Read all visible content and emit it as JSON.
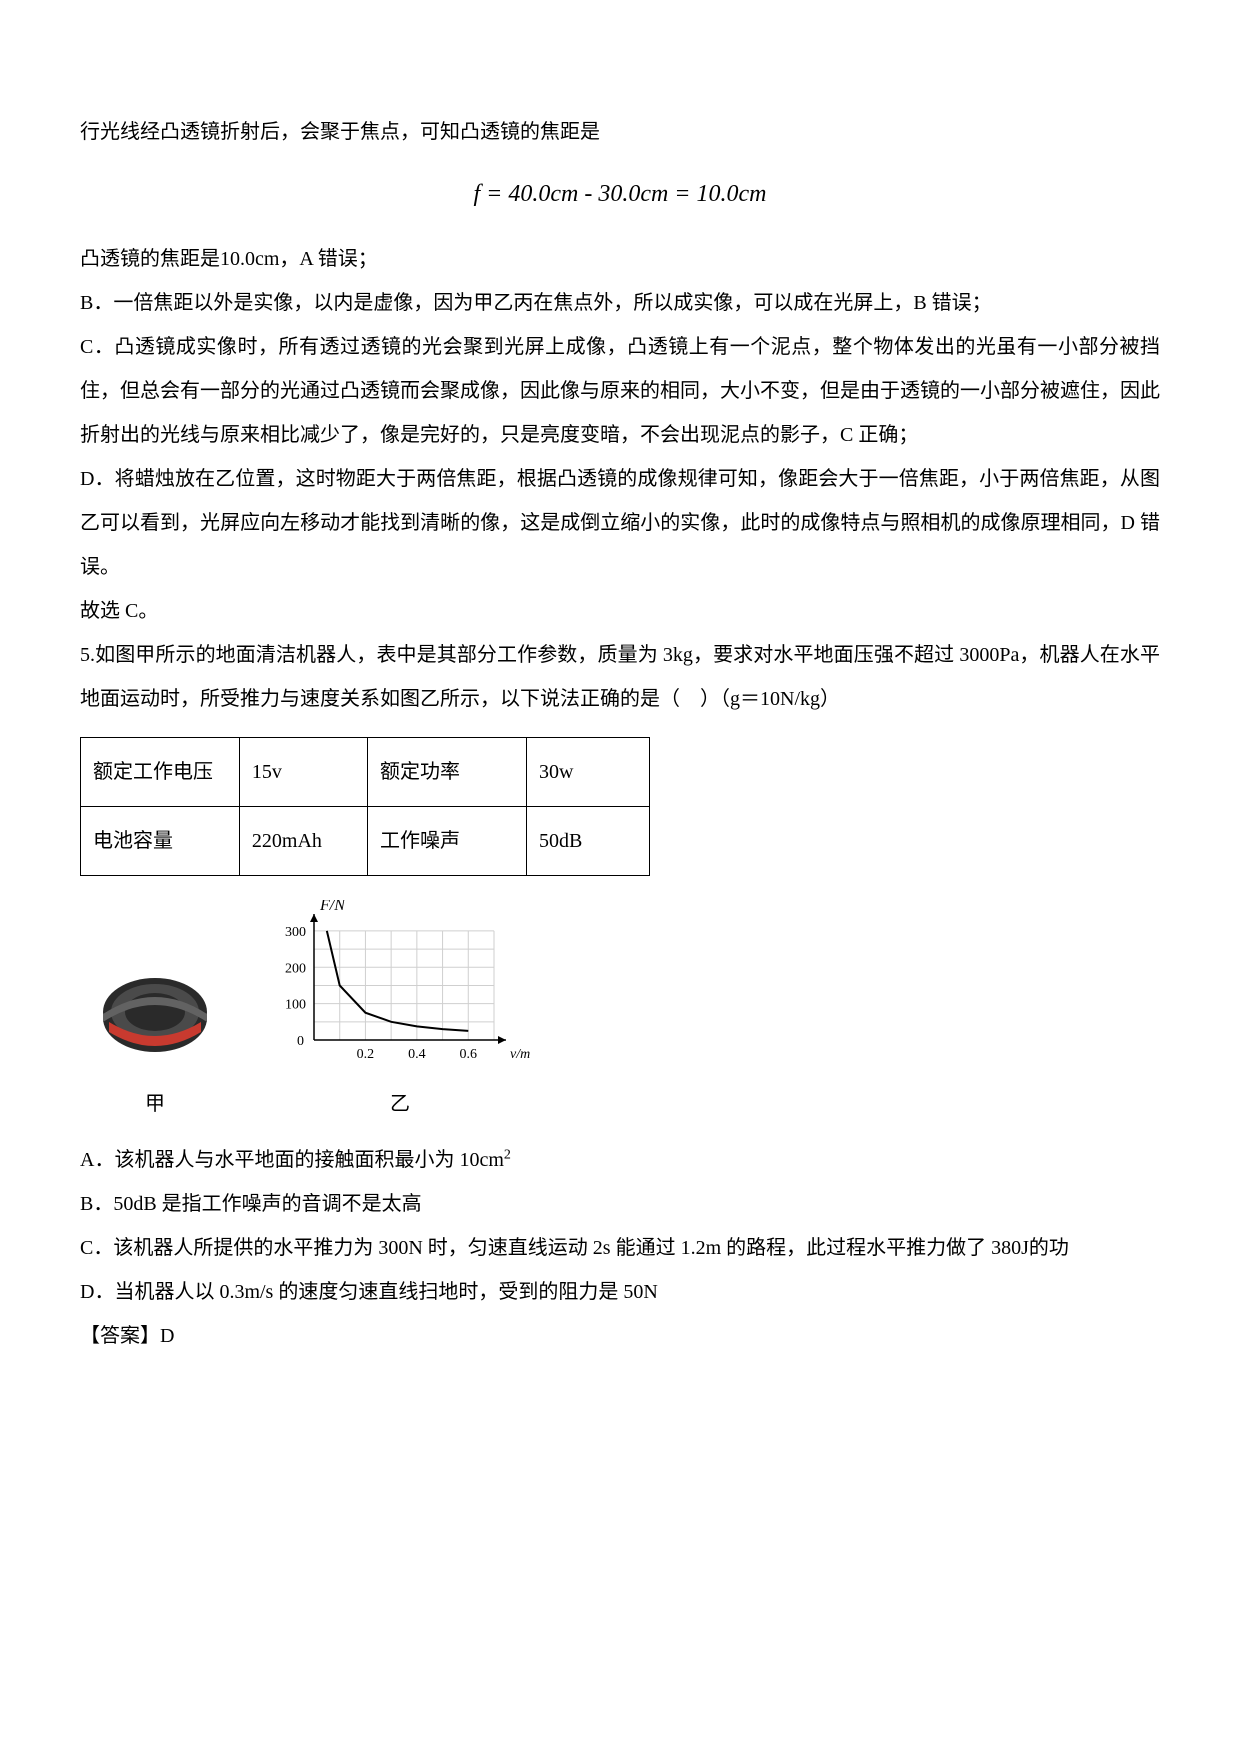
{
  "lines": {
    "l1": "行光线经凸透镜折射后，会聚于焦点，可知凸透镜的焦距是",
    "formula": "f = 40.0cm - 30.0cm = 10.0cm",
    "l2": "凸透镜的焦距是10.0cm，A 错误；",
    "l3": "B．一倍焦距以外是实像，以内是虚像，因为甲乙丙在焦点外，所以成实像，可以成在光屏上，B 错误；",
    "l4": "C．凸透镜成实像时，所有透过透镜的光会聚到光屏上成像，凸透镜上有一个泥点，整个物体发出的光虽有一小部分被挡住，但总会有一部分的光通过凸透镜而会聚成像，因此像与原来的相同，大小不变，但是由于透镜的一小部分被遮住，因此折射出的光线与原来相比减少了，像是完好的，只是亮度变暗，不会出现泥点的影子，C 正确；",
    "l5": "D．将蜡烛放在乙位置，这时物距大于两倍焦距，根据凸透镜的成像规律可知，像距会大于一倍焦距，小于两倍焦距，从图乙可以看到，光屏应向左移动才能找到清晰的像，这是成倒立缩小的实像，此时的成像特点与照相机的成像原理相同，D 错误。",
    "l6": "故选 C。",
    "q5": "5.如图甲所示的地面清洁机器人，表中是其部分工作参数，质量为 3kg，要求对水平地面压强不超过 3000Pa，机器人在水平地面运动时，所受推力与速度关系如图乙所示，以下说法正确的是（　）（g＝10N/kg）",
    "optA_a": "A．该机器人与水平地面的接触面积最小为 10cm",
    "optA_sup": "2",
    "optB": "B．50dB 是指工作噪声的音调不是太高",
    "optC": "C．该机器人所提供的水平推力为 300N 时，匀速直线运动 2s 能通过 1.2m 的路程，此过程水平推力做了 380J的功",
    "optD": "D．当机器人以 0.3m/s 的速度匀速直线扫地时，受到的阻力是 50N",
    "ans": "【答案】D"
  },
  "table": {
    "columns_w": [
      130,
      100,
      130,
      95
    ],
    "rows": [
      [
        "额定工作电压",
        "15v",
        "额定功率",
        "30w"
      ],
      [
        "电池容量",
        "220mAh",
        "工作噪声",
        "50dB"
      ]
    ]
  },
  "robot": {
    "label": "甲",
    "body_color": "#2a2a2a",
    "bumper_color": "#c83a2f",
    "band_color": "#626262",
    "ring_color": "#4a4a4a"
  },
  "chart": {
    "type": "line",
    "axis_color": "#000000",
    "grid_color": "#cfcfcf",
    "line_color": "#000000",
    "background": "#ffffff",
    "label_fontsize": 14,
    "y_title": "F/N",
    "x_title": "v/m·s",
    "xlim": [
      0,
      0.7
    ],
    "ylim": [
      0,
      330
    ],
    "xticks": [
      0.2,
      0.4,
      0.6
    ],
    "yticks": [
      100,
      200,
      300
    ],
    "x_per_unit": 260,
    "y_per_unit": 0.38,
    "x_vals": [
      0.05,
      0.1,
      0.2,
      0.3,
      0.4,
      0.5,
      0.6
    ],
    "y_vals": [
      300,
      150,
      75,
      50,
      37.5,
      30,
      25
    ],
    "label": "乙"
  }
}
